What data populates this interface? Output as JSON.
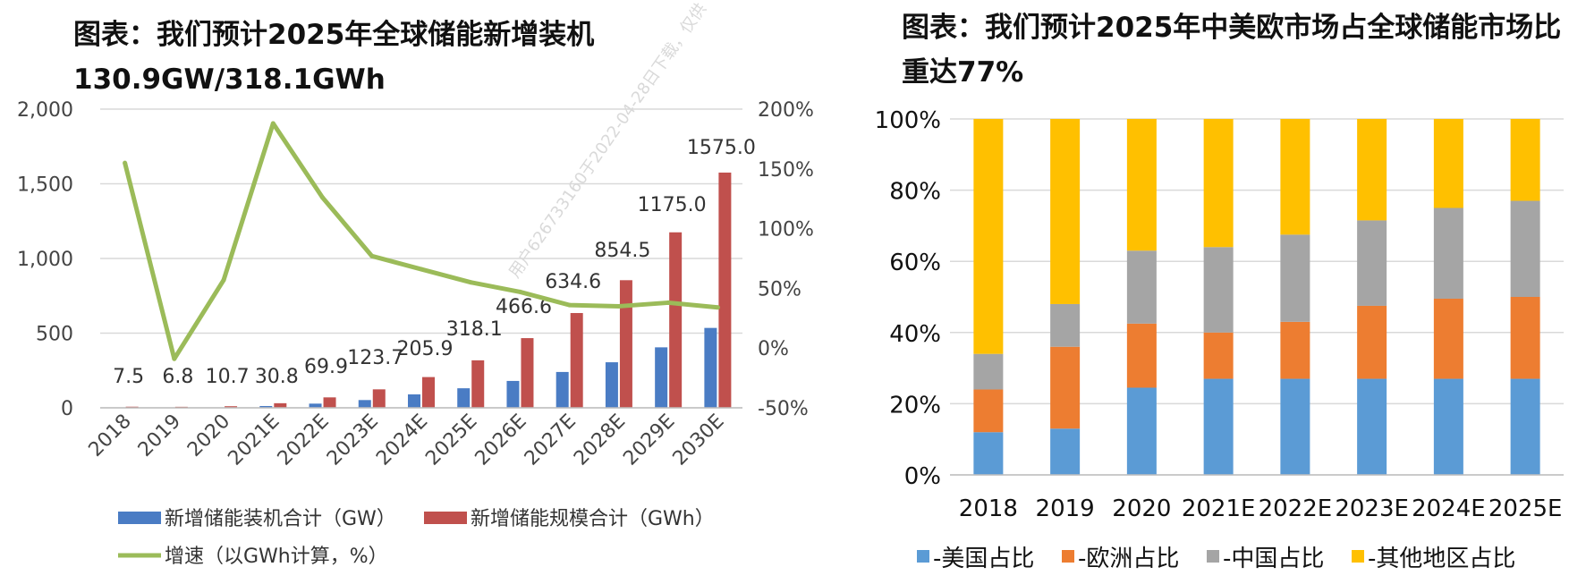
{
  "chart_data": [
    {
      "type": "bar+line",
      "title": "图表：我们预计2025年全球储能新增装机130.9GW/318.1GWh",
      "categories": [
        "2018",
        "2019",
        "2020",
        "2021E",
        "2022E",
        "2023E",
        "2024E",
        "2025E",
        "2026E",
        "2027E",
        "2028E",
        "2029E",
        "2030E"
      ],
      "y_left_ticks": [
        "2,000",
        "1,500",
        "1,000",
        "500",
        "0"
      ],
      "y_left_range": [
        0,
        2000
      ],
      "y_right_ticks": [
        "200%",
        "150%",
        "100%",
        "50%",
        "0%",
        "-50%"
      ],
      "y_right_range": [
        -50,
        200
      ],
      "series": [
        {
          "name": "新增储能装机合计（GW）",
          "axis": "left",
          "color": "#4a7cc4",
          "values": [
            2,
            2,
            3,
            12,
            28,
            52,
            90,
            130.9,
            180,
            240,
            305,
            405,
            535
          ]
        },
        {
          "name": "新增储能规模合计（GWh）",
          "axis": "left",
          "color": "#c0504d",
          "values": [
            7.5,
            6.8,
            10.7,
            30.8,
            69.9,
            123.7,
            205.9,
            318.1,
            466.6,
            634.6,
            854.5,
            1175.0,
            1575.0
          ],
          "labels": [
            "7.5",
            "6.8",
            "10.7",
            "30.8",
            "69.9",
            "123.7",
            "205.9",
            "318.1",
            "466.6",
            "634.6",
            "854.5",
            "1175.0",
            "1575.0"
          ]
        },
        {
          "name": "增速（以GWh计算，%）",
          "axis": "right",
          "color": "#9bbb59",
          "type": "line",
          "values": [
            155,
            -9,
            57,
            188,
            126,
            77,
            66,
            55,
            47,
            36,
            35,
            38,
            34
          ]
        }
      ],
      "grid": true,
      "legend_position": "bottom"
    },
    {
      "type": "stacked-bar",
      "title": "图表：我们预计2025年中美欧市场占全球储能市场比重达77%",
      "categories": [
        "2018",
        "2019",
        "2020",
        "2021E",
        "2022E",
        "2023E",
        "2024E",
        "2025E"
      ],
      "y_ticks": [
        "100%",
        "80%",
        "60%",
        "40%",
        "20%",
        "0%"
      ],
      "ylim": [
        0,
        100
      ],
      "series": [
        {
          "name": "-美国占比",
          "color": "#5b9bd5",
          "values": [
            12,
            13,
            24.5,
            27,
            27,
            27,
            27,
            27
          ]
        },
        {
          "name": "-欧洲占比",
          "color": "#ed7d31",
          "values": [
            12,
            23,
            18,
            13,
            16,
            20.5,
            22.5,
            23
          ]
        },
        {
          "name": "-中国占比",
          "color": "#a5a5a5",
          "values": [
            10,
            12,
            20.5,
            24,
            24.5,
            24,
            25.5,
            27
          ]
        },
        {
          "name": "-其他地区占比",
          "color": "#ffc000",
          "values": [
            66,
            52,
            37,
            36,
            32.5,
            28.5,
            25,
            23
          ]
        }
      ],
      "grid": true,
      "legend_position": "bottom"
    }
  ],
  "watermark": "用户62673316​0于2022-04-28日下载，仅供"
}
